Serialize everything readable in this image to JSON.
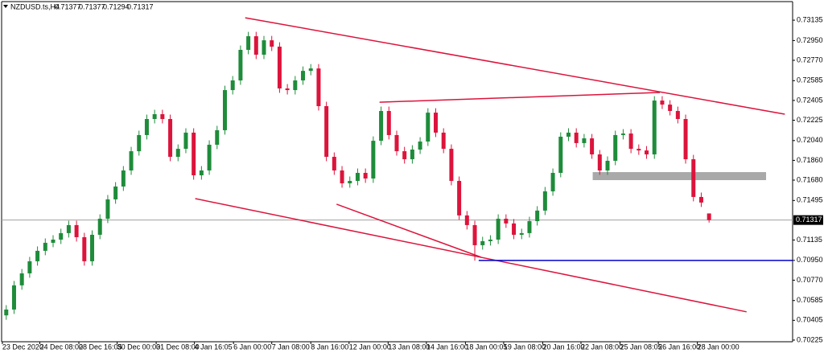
{
  "chart_data": {
    "type": "candlestick",
    "title": "NZDUSD.ts,H4",
    "up_color": "#1e8c3a",
    "down_color": "#dc143c",
    "open": [
      0.7045,
      0.70503,
      0.70723,
      0.70832,
      0.70942,
      0.71037,
      0.7111,
      0.71139,
      0.71198,
      0.71271,
      0.71161,
      0.70942,
      0.71183,
      0.71329,
      0.71505,
      0.71622,
      0.71768,
      0.71943,
      0.7209,
      0.72236,
      0.7228,
      0.72236,
      0.71892,
      0.71965,
      0.72112,
      0.71724,
      0.71768,
      0.72002,
      0.72134,
      0.72499,
      0.72587,
      0.72865,
      0.72989,
      0.72821,
      0.72952,
      0.72894,
      0.72514,
      0.72499,
      0.72587,
      0.72674,
      0.72696,
      0.72353,
      0.71892,
      0.71768,
      0.71651,
      0.71673,
      0.71746,
      0.71695,
      0.72038,
      0.72309,
      0.7209,
      0.71943,
      0.7187,
      0.71958,
      0.72031,
      0.72294,
      0.72112,
      0.71965,
      0.71673,
      0.71359,
      0.71271,
      0.71088,
      0.71125,
      0.71139,
      0.71329,
      0.71286,
      0.71183,
      0.71198,
      0.71307,
      0.71403,
      0.71578,
      0.71746,
      0.72075,
      0.72112,
      0.72017,
      0.7206,
      0.71914,
      0.71768,
      0.71856,
      0.7209,
      0.72104,
      0.71965,
      0.7195,
      0.71914,
      0.72404,
      0.72367,
      0.72309,
      0.72236,
      0.7187,
      0.71527,
      0.71377
    ],
    "high": [
      0.70543,
      0.70763,
      0.70872,
      0.70982,
      0.71077,
      0.7115,
      0.71179,
      0.71238,
      0.71311,
      0.71311,
      0.71201,
      0.71223,
      0.71369,
      0.71545,
      0.71662,
      0.71808,
      0.71983,
      0.7213,
      0.72276,
      0.7232,
      0.7232,
      0.72276,
      0.72005,
      0.72152,
      0.72152,
      0.71808,
      0.72042,
      0.72174,
      0.72539,
      0.72627,
      0.72905,
      0.73029,
      0.73029,
      0.72992,
      0.72992,
      0.72934,
      0.72554,
      0.72627,
      0.72714,
      0.72736,
      0.72736,
      0.72393,
      0.71932,
      0.71808,
      0.71713,
      0.71786,
      0.71786,
      0.72078,
      0.72349,
      0.72349,
      0.7213,
      0.71983,
      0.71998,
      0.72071,
      0.72334,
      0.72334,
      0.72152,
      0.72005,
      0.71713,
      0.71399,
      0.71311,
      0.71165,
      0.71179,
      0.71369,
      0.71369,
      0.71326,
      0.71238,
      0.71347,
      0.71443,
      0.71618,
      0.71786,
      0.72115,
      0.72152,
      0.72152,
      0.721,
      0.721,
      0.71954,
      0.71896,
      0.7213,
      0.72144,
      0.72144,
      0.72005,
      0.7199,
      0.72444,
      0.72444,
      0.72407,
      0.72349,
      0.72276,
      0.7191,
      0.71567,
      0.71377
    ],
    "low": [
      0.7041,
      0.70463,
      0.70683,
      0.70792,
      0.70902,
      0.70997,
      0.7107,
      0.71099,
      0.71158,
      0.71121,
      0.70902,
      0.70902,
      0.71143,
      0.71289,
      0.71465,
      0.71582,
      0.71728,
      0.71903,
      0.7205,
      0.72196,
      0.72196,
      0.71852,
      0.71852,
      0.71925,
      0.71684,
      0.71684,
      0.71728,
      0.71962,
      0.72094,
      0.72459,
      0.72547,
      0.72825,
      0.72781,
      0.72781,
      0.72854,
      0.72474,
      0.72459,
      0.72459,
      0.72547,
      0.72634,
      0.72313,
      0.71852,
      0.71728,
      0.71611,
      0.71611,
      0.71633,
      0.71655,
      0.71655,
      0.71998,
      0.7205,
      0.71903,
      0.7183,
      0.7183,
      0.71918,
      0.71991,
      0.72072,
      0.71925,
      0.71633,
      0.71319,
      0.71231,
      0.70948,
      0.71048,
      0.71085,
      0.71099,
      0.71246,
      0.71143,
      0.71143,
      0.71158,
      0.71267,
      0.71363,
      0.71538,
      0.71706,
      0.72035,
      0.71977,
      0.71977,
      0.71874,
      0.71728,
      0.71728,
      0.71816,
      0.7205,
      0.71925,
      0.7191,
      0.71874,
      0.71874,
      0.72327,
      0.72269,
      0.72196,
      0.7183,
      0.71487,
      0.71436,
      0.71294
    ],
    "close": [
      0.70503,
      0.70723,
      0.70832,
      0.70942,
      0.71037,
      0.7111,
      0.71139,
      0.71198,
      0.71271,
      0.71161,
      0.70942,
      0.71183,
      0.71329,
      0.71505,
      0.71622,
      0.71768,
      0.71943,
      0.7209,
      0.72236,
      0.7228,
      0.72236,
      0.71892,
      0.71965,
      0.72112,
      0.71724,
      0.71768,
      0.72002,
      0.72134,
      0.72499,
      0.72587,
      0.72865,
      0.72989,
      0.72821,
      0.72952,
      0.72894,
      0.72514,
      0.72499,
      0.72587,
      0.72674,
      0.72696,
      0.72353,
      0.71892,
      0.71768,
      0.71651,
      0.71673,
      0.71746,
      0.71695,
      0.72038,
      0.72309,
      0.7209,
      0.71943,
      0.7187,
      0.71958,
      0.72031,
      0.72294,
      0.72112,
      0.71965,
      0.71673,
      0.71359,
      0.71271,
      0.71088,
      0.71125,
      0.71139,
      0.71329,
      0.71286,
      0.71183,
      0.71198,
      0.71307,
      0.71403,
      0.71578,
      0.71746,
      0.72075,
      0.72112,
      0.72017,
      0.7206,
      0.71914,
      0.71768,
      0.71856,
      0.7209,
      0.72104,
      0.71965,
      0.7195,
      0.71914,
      0.72404,
      0.72367,
      0.72309,
      0.72236,
      0.7187,
      0.71527,
      0.71476,
      0.71317
    ],
    "xlim": [
      -0.8,
      100.7
    ],
    "xticks": [
      {
        "value": -0.5,
        "label": "23 Dec 2020"
      },
      {
        "value": 4.3,
        "label": "24 Dec 08:00"
      },
      {
        "value": 9.3,
        "label": "28 Dec 16:05"
      },
      {
        "value": 14.2,
        "label": "30 Dec 00:00"
      },
      {
        "value": 19.2,
        "label": "31 Dec 08:00"
      },
      {
        "value": 24.1,
        "label": "4 Jan 16:05"
      },
      {
        "value": 29.1,
        "label": "6 Jan 00:00"
      },
      {
        "value": 34.0,
        "label": "7 Jan 08:00"
      },
      {
        "value": 39.0,
        "label": "8 Jan 16:00"
      },
      {
        "value": 43.9,
        "label": "12 Jan 00:00"
      },
      {
        "value": 48.9,
        "label": "13 Jan 08:00"
      },
      {
        "value": 53.8,
        "label": "14 Jan 16:00"
      },
      {
        "value": 58.8,
        "label": "18 Jan 00:05"
      },
      {
        "value": 63.7,
        "label": "19 Jan 08:00"
      },
      {
        "value": 68.7,
        "label": "20 Jan 16:00"
      },
      {
        "value": 73.6,
        "label": "22 Jan 08:00"
      },
      {
        "value": 78.6,
        "label": "25 Jan 08:05"
      },
      {
        "value": 83.5,
        "label": "26 Jan 16:00"
      },
      {
        "value": 88.5,
        "label": "28 Jan 00:00"
      }
    ],
    "ylim": [
      0.7021,
      0.7326
    ],
    "yticks": [
      0.73135,
      {
        "value": 0.7295,
        "label": "0.72950"
      },
      {
        "value": 0.7277,
        "label": "0.72770"
      },
      0.72585,
      0.72405,
      0.72225,
      {
        "value": 0.7204,
        "label": "0.72040"
      },
      {
        "value": 0.7186,
        "label": "0.71860"
      },
      {
        "value": 0.7168,
        "label": "0.71680"
      },
      0.71495,
      0.71135,
      {
        "value": 0.7095,
        "label": "0.70950"
      },
      {
        "value": 0.7077,
        "label": "0.70770"
      },
      0.70585,
      0.70405,
      0.70225
    ],
    "trendlines": [
      {
        "x": [
          30.6,
          99.7
        ],
        "y": [
          0.73157,
          0.7228
        ],
        "color": "#dc143c"
      },
      {
        "x": [
          24.2,
          94.8
        ],
        "y": [
          0.71512,
          0.70482
        ],
        "color": "#dc143c"
      },
      {
        "x": [
          42.3,
          60.8
        ],
        "y": [
          0.71461,
          0.70979
        ],
        "color": "#dc143c"
      },
      {
        "x": [
          47.8,
          83.7
        ],
        "y": [
          0.72389,
          0.72477
        ],
        "color": "#dc143c"
      },
      {
        "x": [
          60.5,
          100.7
        ],
        "y": [
          0.7095,
          0.7095
        ],
        "color": "#0000cd"
      }
    ],
    "zone": {
      "x": [
        75.1,
        97.3
      ],
      "y": [
        0.7168,
        0.71753
      ],
      "color": "#a9a9a9"
    }
  }
}
